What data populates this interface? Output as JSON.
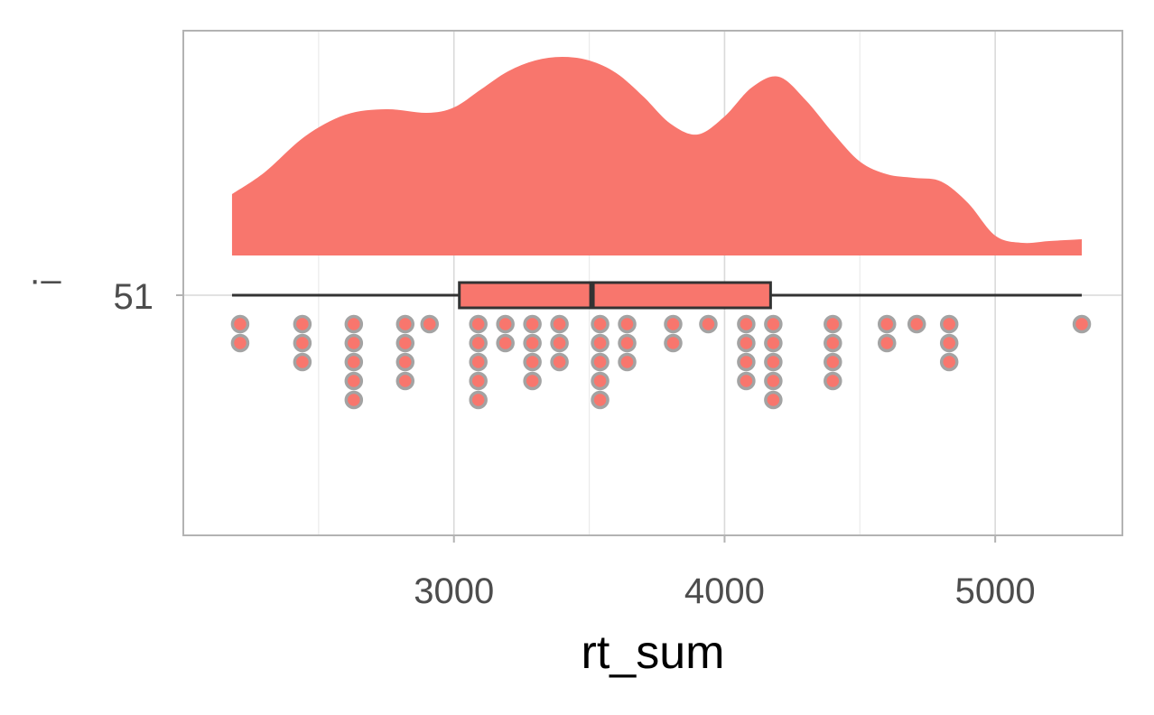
{
  "chart_data": {
    "type": "raincloud",
    "title": "",
    "xlabel": "rt_sum",
    "ylabel": "",
    "y_axis_title_glyph": "·–",
    "y_category": "51",
    "xlim": [
      2000,
      5470
    ],
    "x_ticks": [
      3000,
      4000,
      5000
    ],
    "x_tick_labels": [
      "3000",
      "4000",
      "5000"
    ],
    "grid": true,
    "colors": {
      "fill": "#F8766D",
      "box_outline": "#333333",
      "dot_outline": "#A3A3A3",
      "panel_border": "#B3B3B3",
      "grid_major": "#D9D9D9",
      "grid_minor": "#EBEBEB"
    },
    "boxplot": {
      "min": 2180,
      "q1": 3020,
      "median": 3510,
      "q3": 4170,
      "max": 5320
    },
    "density": {
      "x": [
        2180,
        2300,
        2450,
        2600,
        2750,
        2900,
        3000,
        3100,
        3200,
        3300,
        3400,
        3500,
        3600,
        3700,
        3800,
        3900,
        4000,
        4100,
        4200,
        4300,
        4400,
        4500,
        4600,
        4700,
        4800,
        4900,
        5000,
        5100,
        5200,
        5320
      ],
      "y": [
        0.34,
        0.46,
        0.66,
        0.78,
        0.81,
        0.79,
        0.82,
        0.92,
        1.02,
        1.08,
        1.1,
        1.08,
        1.01,
        0.88,
        0.73,
        0.67,
        0.77,
        0.93,
        0.99,
        0.86,
        0.68,
        0.52,
        0.45,
        0.43,
        0.41,
        0.29,
        0.11,
        0.07,
        0.08,
        0.09
      ]
    },
    "dotplot": [
      {
        "x": 2210,
        "count": 2
      },
      {
        "x": 2440,
        "count": 3
      },
      {
        "x": 2630,
        "count": 5
      },
      {
        "x": 2820,
        "count": 4
      },
      {
        "x": 2910,
        "count": 1
      },
      {
        "x": 3090,
        "count": 5
      },
      {
        "x": 3190,
        "count": 2
      },
      {
        "x": 3290,
        "count": 4
      },
      {
        "x": 3390,
        "count": 3
      },
      {
        "x": 3540,
        "count": 5
      },
      {
        "x": 3640,
        "count": 3
      },
      {
        "x": 3810,
        "count": 2
      },
      {
        "x": 3940,
        "count": 1
      },
      {
        "x": 4080,
        "count": 4
      },
      {
        "x": 4180,
        "count": 5
      },
      {
        "x": 4400,
        "count": 4
      },
      {
        "x": 4600,
        "count": 2
      },
      {
        "x": 4710,
        "count": 1
      },
      {
        "x": 4830,
        "count": 3
      },
      {
        "x": 5320,
        "count": 1
      }
    ]
  }
}
